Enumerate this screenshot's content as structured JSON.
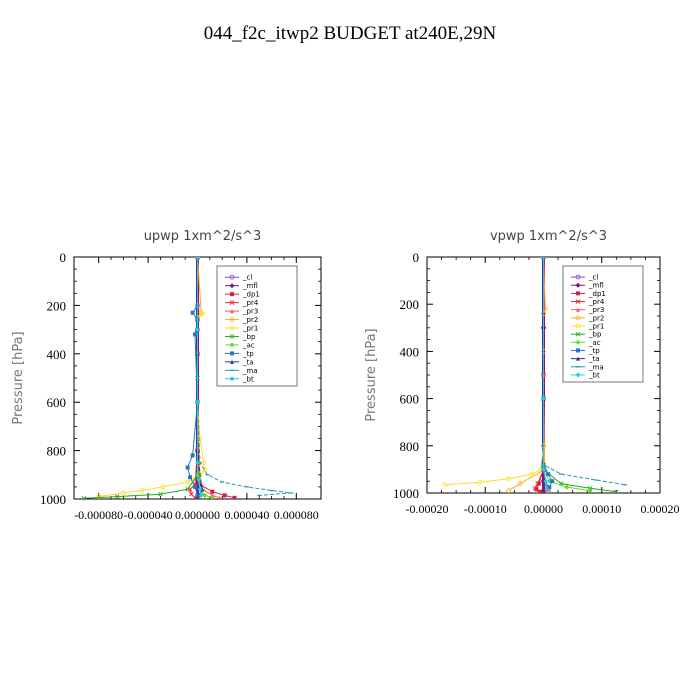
{
  "figure": {
    "title": "044_f2c_itwp2  BUDGET at240E,29N"
  },
  "chart_data": [
    {
      "type": "line",
      "title": "upwp   1xm^2/s^3",
      "ylabel": "Pressure [hPa]",
      "xlabel": "",
      "ylim": [
        1000,
        0
      ],
      "xlim": [
        -0.0001,
        0.0001
      ],
      "yticks": [
        0,
        200,
        400,
        600,
        800,
        1000
      ],
      "ytick_labels": [
        "0",
        "200",
        "400",
        "600",
        "800",
        "1000"
      ],
      "xticks": [
        -8e-05,
        -4e-05,
        0.0,
        4e-05,
        8e-05
      ],
      "xtick_labels": [
        "-0.000080",
        "-0.000040",
        "0.000000",
        "0.000040",
        "0.000080"
      ],
      "legend_position": "top-right",
      "legend": [
        "_cl",
        "_mfl",
        "_dp1",
        "_pr4",
        "_pr3",
        "_pr2",
        "_pr1",
        "_bp",
        "_ac",
        "_tp",
        "_ta",
        "_ma",
        "_bt"
      ],
      "series": [
        {
          "name": "_cl",
          "color": "#8844cc",
          "pressure": [
            0,
            300,
            600,
            800,
            900,
            950,
            990,
            1000
          ],
          "values": [
            0,
            0,
            0,
            0,
            0,
            0,
            0,
            0
          ]
        },
        {
          "name": "_mfl",
          "color": "#7a1a7a",
          "pressure": [
            0,
            300,
            600,
            800,
            900,
            950,
            990,
            1000
          ],
          "values": [
            0,
            0,
            0,
            0,
            0,
            0,
            0,
            0
          ]
        },
        {
          "name": "_dp1",
          "color": "#cc2244",
          "pressure": [
            0,
            400,
            800,
            940,
            970,
            985,
            995
          ],
          "values": [
            0,
            0,
            0,
            2e-06,
            1.2e-05,
            2.2e-05,
            3e-05
          ]
        },
        {
          "name": "_pr4",
          "color": "#ee2222",
          "pressure": [
            0,
            400,
            800,
            940,
            960,
            980,
            995
          ],
          "values": [
            0,
            0,
            0,
            -2e-06,
            -6e-06,
            -5e-06,
            -2e-06
          ]
        },
        {
          "name": "_pr3",
          "color": "#ff5555",
          "pressure": [
            0,
            500,
            900,
            960,
            985,
            995
          ],
          "values": [
            0,
            0,
            0,
            4e-06,
            1.2e-05,
            1.8e-05
          ]
        },
        {
          "name": "_pr2",
          "color": "#ffaa22",
          "pressure": [
            0,
            230,
            250,
            600,
            900,
            960,
            990
          ],
          "values": [
            0,
            3e-06,
            0,
            0,
            2e-06,
            4e-06,
            4e-06
          ]
        },
        {
          "name": "_pr1",
          "color": "#ffdd22",
          "pressure": [
            0,
            200,
            235,
            260,
            600,
            750,
            850,
            880,
            900,
            930,
            950,
            965,
            975,
            990
          ],
          "values": [
            0,
            0,
            4e-06,
            0,
            0,
            2e-06,
            5e-06,
            6e-06,
            2e-06,
            -8e-06,
            -2.8e-05,
            -4.5e-05,
            -6e-05,
            -8e-05
          ]
        },
        {
          "name": "_bp",
          "color": "#22aa22",
          "pressure": [
            0,
            500,
            900,
            960,
            980,
            990,
            997
          ],
          "values": [
            0,
            0,
            0,
            -8e-06,
            -3e-05,
            -6.5e-05,
            -9.2e-05
          ]
        },
        {
          "name": "_ac",
          "color": "#66dd22",
          "pressure": [
            0,
            600,
            900,
            960,
            985,
            995
          ],
          "values": [
            0,
            0,
            0,
            2e-06,
            6e-06,
            1.2e-05
          ]
        },
        {
          "name": "_tp",
          "color": "#2277cc",
          "pressure": [
            0,
            200,
            230,
            260,
            320,
            600,
            820,
            870,
            910,
            950,
            985
          ],
          "values": [
            0,
            0,
            -4e-06,
            0,
            -2e-06,
            0,
            -4e-06,
            -8e-06,
            -6e-06,
            -2e-06,
            0
          ]
        },
        {
          "name": "_ta",
          "color": "#223399",
          "pressure": [
            0,
            400,
            800,
            940,
            960,
            980
          ],
          "values": [
            0,
            0,
            0,
            3e-06,
            4e-06,
            2e-06
          ]
        },
        {
          "name": "_ma",
          "color": "#2299bb",
          "pressure": [
            0,
            300,
            600,
            850,
            900,
            930,
            950,
            965,
            975,
            985
          ],
          "values": [
            0,
            0,
            0,
            2e-06,
            8e-06,
            2e-05,
            4e-05,
            6e-05,
            7.6e-05,
            5e-05
          ]
        },
        {
          "name": "_bt",
          "color": "#22ccee",
          "pressure": [
            0,
            300,
            600,
            850,
            920,
            960,
            985
          ],
          "values": [
            0,
            0,
            0,
            0,
            1e-06,
            2e-06,
            3e-06
          ]
        }
      ]
    },
    {
      "type": "line",
      "title": "vpwp   1xm^2/s^3",
      "ylabel": "Pressure [hPa]",
      "xlabel": "",
      "ylim": [
        1000,
        0
      ],
      "xlim": [
        -0.0002,
        0.0002
      ],
      "yticks": [
        0,
        200,
        400,
        600,
        800,
        1000
      ],
      "ytick_labels": [
        "0",
        "200",
        "400",
        "600",
        "800",
        "1000"
      ],
      "xticks": [
        -0.0002,
        -0.0001,
        0.0,
        0.0001,
        0.0002
      ],
      "xtick_labels": [
        "-0.00020",
        "-0.00010",
        "0.00000",
        "0.00010",
        "0.00020"
      ],
      "legend_position": "top-right",
      "legend": [
        "_cl",
        "_mfl",
        "_dp1",
        "_pr4",
        "_pr3",
        "_pr2",
        "_pr1",
        "_bp",
        "_ac",
        "_tp",
        "_ta",
        "_ma",
        "_bt"
      ],
      "series": [
        {
          "name": "_cl",
          "color": "#8844cc",
          "pressure": [
            0,
            300,
            600,
            800,
            900,
            950,
            990,
            1000
          ],
          "values": [
            0,
            0,
            0,
            0,
            0,
            0,
            0,
            0
          ]
        },
        {
          "name": "_mfl",
          "color": "#7a1a7a",
          "pressure": [
            0,
            300,
            600,
            800,
            900,
            950,
            990,
            1000
          ],
          "values": [
            0,
            0,
            0,
            0,
            0,
            0,
            0,
            0
          ]
        },
        {
          "name": "_dp1",
          "color": "#cc2244",
          "pressure": [
            0,
            500,
            900,
            960,
            985,
            995
          ],
          "values": [
            0,
            0,
            0,
            -8e-06,
            -1.2e-05,
            -6e-06
          ]
        },
        {
          "name": "_pr4",
          "color": "#ee2222",
          "pressure": [
            0,
            500,
            900,
            960,
            980,
            995
          ],
          "values": [
            0,
            0,
            0,
            -1e-05,
            -1.5e-05,
            -8e-06
          ]
        },
        {
          "name": "_pr3",
          "color": "#ff5555",
          "pressure": [
            0,
            500,
            900,
            960,
            985,
            995
          ],
          "values": [
            0,
            0,
            0,
            5e-06,
            1e-05,
            6e-06
          ]
        },
        {
          "name": "_pr2",
          "color": "#ffaa22",
          "pressure": [
            0,
            220,
            240,
            600,
            900,
            960,
            990
          ],
          "values": [
            0,
            3e-06,
            0,
            0,
            2e-06,
            -4e-05,
            -6e-05
          ]
        },
        {
          "name": "_pr1",
          "color": "#ffdd22",
          "pressure": [
            0,
            400,
            800,
            900,
            920,
            940,
            955,
            965
          ],
          "values": [
            0,
            0,
            0,
            -5e-06,
            -2e-05,
            -6e-05,
            -0.00011,
            -0.00017
          ]
        },
        {
          "name": "_bp",
          "color": "#22aa22",
          "pressure": [
            0,
            600,
            900,
            960,
            980,
            995
          ],
          "values": [
            0,
            0,
            0,
            3e-05,
            8e-05,
            0.000125
          ]
        },
        {
          "name": "_ac",
          "color": "#66dd22",
          "pressure": [
            0,
            600,
            900,
            950,
            975,
            990
          ],
          "values": [
            0,
            0,
            0,
            1e-05,
            4e-05,
            8e-05
          ]
        },
        {
          "name": "_tp",
          "color": "#2277cc",
          "pressure": [
            0,
            600,
            880,
            920,
            950,
            975
          ],
          "values": [
            0,
            0,
            0,
            8e-06,
            1.5e-05,
            1e-05
          ]
        },
        {
          "name": "_ta",
          "color": "#223399",
          "pressure": [
            0,
            600,
            900,
            950,
            980
          ],
          "values": [
            0,
            0,
            0,
            3e-06,
            5e-06
          ]
        },
        {
          "name": "_ma",
          "color": "#2299bb",
          "pressure": [
            0,
            600,
            880,
            920,
            945,
            965
          ],
          "values": [
            0,
            0,
            0,
            3e-05,
            9e-05,
            0.00014
          ]
        },
        {
          "name": "_bt",
          "color": "#22ccee",
          "pressure": [
            0,
            600,
            900,
            950,
            985
          ],
          "values": [
            0,
            0,
            0,
            4e-06,
            6e-06
          ]
        }
      ]
    }
  ]
}
